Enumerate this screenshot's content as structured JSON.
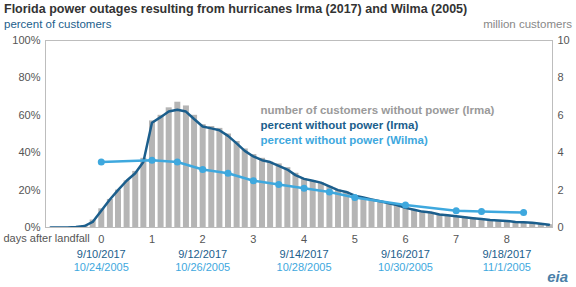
{
  "chart_data": {
    "type": "bar_line",
    "title": "Florida power outages resulting from hurricanes Irma (2017) and Wilma (2005)",
    "ylabel": "percent of customers",
    "y2label": "million customers",
    "xlabel": "days after landfall",
    "source": "eia",
    "xlim": [
      -1.1,
      8.9
    ],
    "xticks": [
      0,
      1,
      2,
      3,
      4,
      5,
      6,
      7,
      8
    ],
    "x_date_labels": [
      {
        "value": 0,
        "labels": [
          "9/10/2017",
          "10/24/2005"
        ]
      },
      {
        "value": 2,
        "labels": [
          "9/12/2017",
          "10/26/2005"
        ]
      },
      {
        "value": 4,
        "labels": [
          "9/14/2017",
          "10/28/2005"
        ]
      },
      {
        "value": 6,
        "labels": [
          "9/16/2017",
          "10/30/2005"
        ]
      },
      {
        "value": 8,
        "labels": [
          "9/18/2017",
          "11/1/2005"
        ]
      }
    ],
    "ylim": [
      0,
      100
    ],
    "yticks": [
      {
        "value": 0,
        "label": "0%"
      },
      {
        "value": 20,
        "label": "20%"
      },
      {
        "value": 40,
        "label": "40%"
      },
      {
        "value": 60,
        "label": "60%"
      },
      {
        "value": 80,
        "label": "80%"
      },
      {
        "value": 100,
        "label": "100%"
      }
    ],
    "y2lim": [
      0,
      10
    ],
    "y2ticks": [
      0,
      2,
      4,
      6,
      8,
      10
    ],
    "grid": false,
    "series": [
      {
        "name": "number of customers without power (Irma)",
        "type": "bar",
        "axis": "y2",
        "color": "#b5b5b5",
        "x": [
          -1,
          -0.83,
          -0.67,
          -0.5,
          -0.33,
          -0.17,
          0,
          0.17,
          0.33,
          0.5,
          0.67,
          0.83,
          1,
          1.17,
          1.33,
          1.5,
          1.67,
          1.83,
          2,
          2.17,
          2.33,
          2.5,
          2.67,
          2.83,
          3,
          3.17,
          3.33,
          3.5,
          3.67,
          3.83,
          4,
          4.17,
          4.33,
          4.5,
          4.67,
          4.83,
          5,
          5.17,
          5.33,
          5.5,
          5.67,
          5.83,
          6,
          6.17,
          6.33,
          6.5,
          6.67,
          6.83,
          7,
          7.17,
          7.33,
          7.5,
          7.67,
          7.83,
          8,
          8.17,
          8.33,
          8.5,
          8.67,
          8.83
        ],
        "values": [
          0,
          0,
          0,
          0.05,
          0.1,
          0.4,
          1.0,
          1.5,
          2.0,
          2.5,
          3.0,
          3.7,
          5.7,
          6.0,
          6.4,
          6.7,
          6.5,
          6.0,
          5.5,
          5.4,
          5.3,
          5.0,
          4.6,
          4.2,
          3.9,
          3.7,
          3.5,
          3.4,
          3.2,
          2.9,
          2.6,
          2.5,
          2.4,
          2.2,
          2.0,
          1.9,
          1.7,
          1.6,
          1.5,
          1.4,
          1.3,
          1.2,
          1.05,
          0.95,
          0.85,
          0.8,
          0.7,
          0.65,
          0.6,
          0.55,
          0.5,
          0.45,
          0.4,
          0.38,
          0.35,
          0.3,
          0.28,
          0.25,
          0.2,
          0.15
        ]
      },
      {
        "name": "percent without power (Irma)",
        "type": "line",
        "color": "#1b5e8c",
        "x": [
          -1,
          -0.83,
          -0.67,
          -0.5,
          -0.33,
          -0.17,
          0,
          0.17,
          0.33,
          0.5,
          0.67,
          0.83,
          1,
          1.17,
          1.33,
          1.5,
          1.67,
          1.83,
          2,
          2.17,
          2.33,
          2.5,
          2.67,
          2.83,
          3,
          3.17,
          3.33,
          3.5,
          3.67,
          3.83,
          4,
          4.17,
          4.33,
          4.5,
          4.67,
          4.83,
          5,
          5.17,
          5.33,
          5.5,
          5.67,
          5.83,
          6,
          6.17,
          6.33,
          6.5,
          6.67,
          6.83,
          7,
          7.17,
          7.33,
          7.5,
          7.67,
          7.83,
          8,
          8.17,
          8.33,
          8.5,
          8.67,
          8.83
        ],
        "values": [
          0,
          0,
          0,
          0.3,
          0.8,
          3,
          9,
          15,
          20,
          25,
          29,
          35,
          56,
          59,
          62,
          63,
          62,
          58,
          54,
          53,
          52,
          49,
          45,
          41,
          38,
          36,
          35,
          33,
          31,
          28,
          26,
          25,
          24,
          22,
          20,
          19,
          17,
          16,
          15,
          14,
          13,
          12,
          10.5,
          9.5,
          8.5,
          8,
          7,
          6.5,
          6,
          5.5,
          5,
          4.5,
          4,
          3.8,
          3.5,
          3,
          2.8,
          2.5,
          2,
          1.5
        ]
      },
      {
        "name": "percent without power (Wilma)",
        "type": "line",
        "color": "#3ea8de",
        "marker": "circle",
        "x": [
          0,
          1,
          1.5,
          2,
          2.5,
          3,
          3.5,
          4,
          4.5,
          5,
          6,
          7,
          7.5,
          8.33
        ],
        "values": [
          35,
          36,
          35,
          31,
          29,
          25,
          23,
          21,
          19,
          16,
          12,
          9,
          8.5,
          8
        ]
      }
    ]
  }
}
